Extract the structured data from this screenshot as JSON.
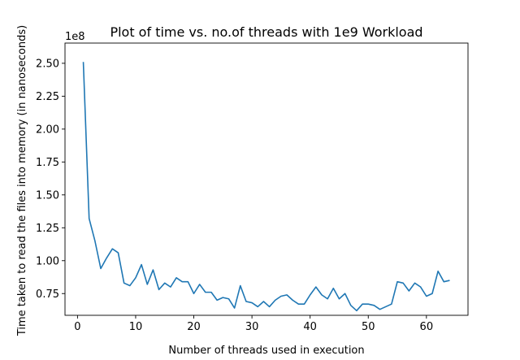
{
  "chart_data": {
    "type": "line",
    "title": "Plot of time vs. no.of threads with 1e9 Workload",
    "xlabel": "Number of threads used in execution",
    "ylabel": "Time taken to read the files into memory (in nanoseconds)",
    "y_offset_label": "1e8",
    "xlim": [
      -2.15,
      67.15
    ],
    "ylim": [
      0.5848,
      2.6537
    ],
    "xticks": [
      0,
      10,
      20,
      30,
      40,
      50,
      60
    ],
    "xtick_labels": [
      "0",
      "10",
      "20",
      "30",
      "40",
      "50",
      "60"
    ],
    "yticks": [
      0.75,
      1.0,
      1.25,
      1.5,
      1.75,
      2.0,
      2.25,
      2.5
    ],
    "ytick_labels": [
      "0.75",
      "1.00",
      "1.25",
      "1.50",
      "1.75",
      "2.00",
      "2.25",
      "2.50"
    ],
    "grid": false,
    "line_color": "#1f77b4",
    "series": [
      {
        "x": [
          1,
          2,
          3,
          4,
          5,
          6,
          7,
          8,
          9,
          10,
          11,
          12,
          13,
          14,
          15,
          16,
          17,
          18,
          19,
          20,
          21,
          22,
          23,
          24,
          25,
          26,
          27,
          28,
          29,
          30,
          31,
          32,
          33,
          34,
          35,
          36,
          37,
          38,
          39,
          40,
          41,
          42,
          43,
          44,
          45,
          46,
          47,
          48,
          49,
          50,
          51,
          52,
          53,
          54,
          55,
          56,
          57,
          58,
          59,
          60,
          61,
          62,
          63,
          64
        ],
        "values": [
          2.51,
          1.32,
          1.15,
          0.94,
          1.02,
          1.09,
          1.06,
          0.83,
          0.81,
          0.87,
          0.97,
          0.82,
          0.93,
          0.78,
          0.83,
          0.8,
          0.87,
          0.84,
          0.84,
          0.75,
          0.82,
          0.76,
          0.76,
          0.7,
          0.72,
          0.71,
          0.64,
          0.81,
          0.69,
          0.68,
          0.65,
          0.69,
          0.65,
          0.7,
          0.73,
          0.74,
          0.7,
          0.67,
          0.67,
          0.74,
          0.8,
          0.74,
          0.71,
          0.79,
          0.71,
          0.75,
          0.66,
          0.62,
          0.67,
          0.67,
          0.66,
          0.63,
          0.65,
          0.67,
          0.84,
          0.83,
          0.77,
          0.83,
          0.8,
          0.73,
          0.75,
          0.92,
          0.84,
          0.85
        ]
      }
    ]
  }
}
